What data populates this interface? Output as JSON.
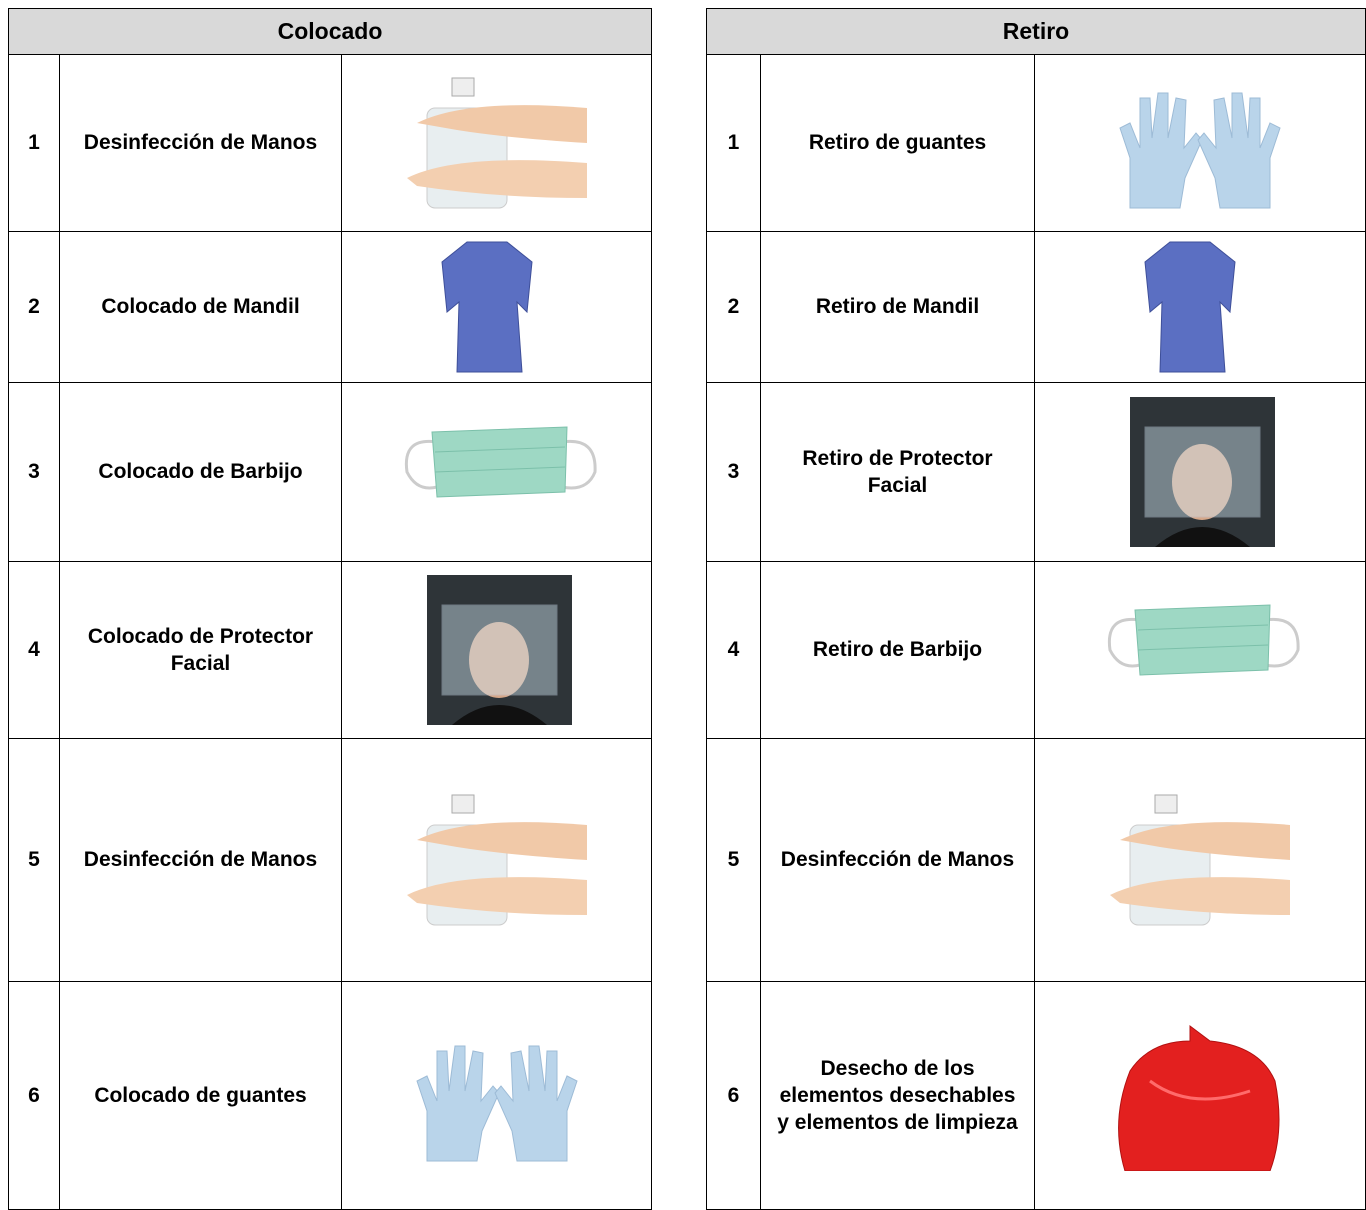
{
  "tables": [
    {
      "title": "Colocado",
      "rows": [
        {
          "number": 1,
          "label": "Desinfección de Manos"
        },
        {
          "number": 2,
          "label": "Colocado de Mandil"
        },
        {
          "number": 3,
          "label": "Colocado de Barbijo"
        },
        {
          "number": 4,
          "label": "Colocado de Protector Facial"
        },
        {
          "number": 5,
          "label": "Desinfección de Manos"
        },
        {
          "number": 6,
          "label": "Colocado de guantes"
        }
      ]
    },
    {
      "title": "Retiro",
      "rows": [
        {
          "number": 1,
          "label": "Retiro de guantes"
        },
        {
          "number": 2,
          "label": "Retiro de Mandil"
        },
        {
          "number": 3,
          "label": "Retiro de Protector Facial"
        },
        {
          "number": 4,
          "label": "Retiro de Barbijo"
        },
        {
          "number": 5,
          "label": "Desinfección de Manos"
        },
        {
          "number": 6,
          "label": "Desecho de los elementos desechables y elementos de limpieza"
        }
      ]
    }
  ]
}
